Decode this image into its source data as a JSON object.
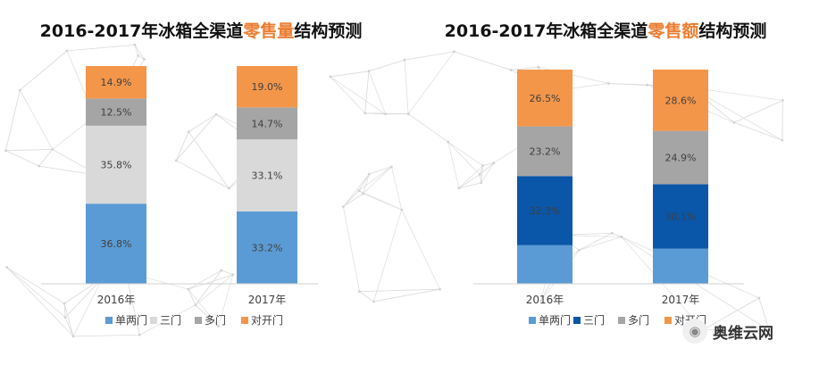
{
  "chart_data": [
    {
      "type": "bar",
      "stacked": true,
      "title_prefix": "2016-2017年冰箱全渠道",
      "title_highlight": "零售量",
      "title_suffix": "结构预测",
      "categories": [
        "2016年",
        "2017年"
      ],
      "series": [
        {
          "name": "单两门",
          "values": [
            36.8,
            33.2
          ],
          "labels": [
            "36.8%",
            "33.2%"
          ],
          "color": "#5b9bd5"
        },
        {
          "name": "三门",
          "values": [
            35.8,
            33.1
          ],
          "labels": [
            "35.8%",
            "33.1%"
          ],
          "color": "#d9d9d9"
        },
        {
          "name": "多门",
          "values": [
            12.5,
            14.7
          ],
          "labels": [
            "12.5%",
            "14.7%"
          ],
          "color": "#a5a5a5"
        },
        {
          "name": "对开门",
          "values": [
            14.9,
            19.0
          ],
          "labels": [
            "14.9%",
            "19.0%"
          ],
          "color": "#f4964a"
        }
      ],
      "legend": "bottom"
    },
    {
      "type": "bar",
      "stacked": true,
      "title_prefix": "2016-2017年冰箱全渠道",
      "title_highlight": "零售额",
      "title_suffix": "结构预测",
      "categories": [
        "2016年",
        "2017年"
      ],
      "series": [
        {
          "name": "单两门",
          "values": [
            18.0,
            16.4
          ],
          "labels": [
            "",
            ""
          ],
          "color": "#5b9bd5"
        },
        {
          "name": "三门",
          "values": [
            32.3,
            30.1
          ],
          "labels": [
            "32.3%",
            "30.1%"
          ],
          "color": "#0a56a8"
        },
        {
          "name": "多门",
          "values": [
            23.2,
            24.9
          ],
          "labels": [
            "23.2%",
            "24.9%"
          ],
          "color": "#a5a5a5"
        },
        {
          "name": "对开门",
          "values": [
            26.5,
            28.6
          ],
          "labels": [
            "26.5%",
            "28.6%"
          ],
          "color": "#f4964a"
        }
      ],
      "legend": "bottom"
    }
  ],
  "watermark": {
    "text": "奥维云网",
    "icon": "wechat-icon"
  }
}
